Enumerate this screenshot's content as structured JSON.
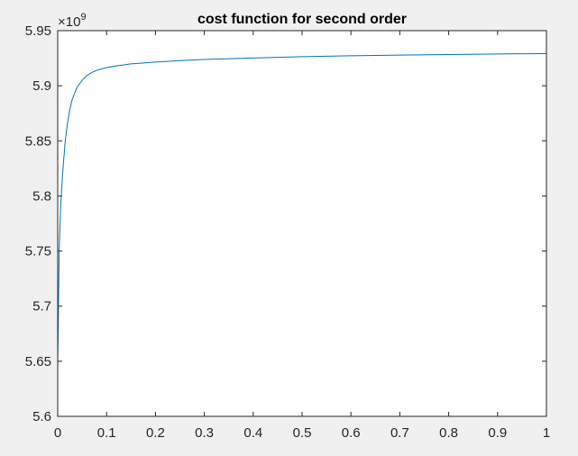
{
  "chart_data": {
    "type": "line",
    "title": "cost function for second order",
    "xlabel": "",
    "ylabel": "",
    "xlim": [
      0,
      1
    ],
    "ylim": [
      5.6,
      5.95
    ],
    "y_exponent_label": "×10",
    "y_exponent_power": "9",
    "xticks": [
      0,
      0.1,
      0.2,
      0.3,
      0.4,
      0.5,
      0.6,
      0.7,
      0.8,
      0.9,
      1
    ],
    "xtick_labels": [
      "0",
      "0.1",
      "0.2",
      "0.3",
      "0.4",
      "0.5",
      "0.6",
      "0.7",
      "0.8",
      "0.9",
      "1"
    ],
    "yticks": [
      5.6,
      5.65,
      5.7,
      5.75,
      5.8,
      5.85,
      5.9,
      5.95
    ],
    "ytick_labels": [
      "5.6",
      "5.65",
      "5.7",
      "5.75",
      "5.8",
      "5.85",
      "5.9",
      "5.95"
    ],
    "grid": false,
    "line_color": "#0072bd",
    "series": [
      {
        "x": [
          0,
          0.003,
          0.006,
          0.01,
          0.015,
          0.02,
          0.025,
          0.03,
          0.04,
          0.05,
          0.06,
          0.07,
          0.08,
          0.1,
          0.12,
          0.15,
          0.2,
          0.25,
          0.3,
          0.4,
          0.5,
          0.6,
          0.7,
          0.8,
          0.9,
          1.0
        ],
        "values": [
          5.648,
          5.75,
          5.79,
          5.82,
          5.848,
          5.866,
          5.879,
          5.888,
          5.899,
          5.905,
          5.9095,
          5.912,
          5.914,
          5.9165,
          5.918,
          5.9198,
          5.9215,
          5.9228,
          5.9238,
          5.9252,
          5.9264,
          5.9272,
          5.9278,
          5.9283,
          5.9288,
          5.9292
        ]
      }
    ]
  }
}
